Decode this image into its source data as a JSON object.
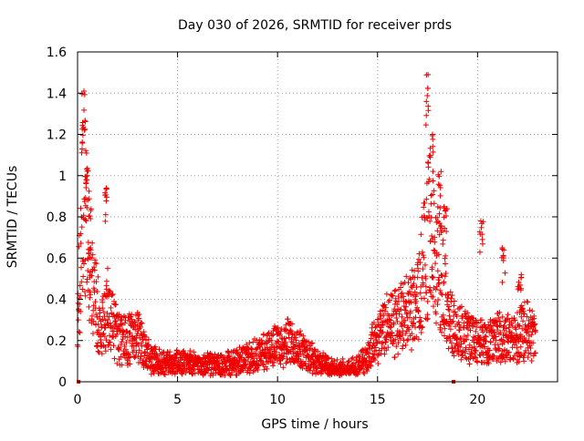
{
  "chart_data": {
    "type": "scatter",
    "title": "Day 030 of 2026, SRMTID for receiver prds",
    "xlabel": "GPS time / hours",
    "ylabel": "SRMTID / TECUs",
    "xlim": [
      0,
      24
    ],
    "ylim": [
      0,
      1.6
    ],
    "xticks": [
      0,
      5,
      10,
      15,
      20
    ],
    "xtick_labels": [
      "0",
      "5",
      "10",
      "15",
      "20"
    ],
    "yticks": [
      0,
      0.2,
      0.4,
      0.6,
      0.8,
      1.0,
      1.2,
      1.4,
      1.6
    ],
    "ytick_labels": [
      "0",
      "0.2",
      "0.4",
      "0.6",
      "0.8",
      "1",
      "1.2",
      "1.4",
      "1.6"
    ],
    "grid": true,
    "legend": "none",
    "series": [
      {
        "name": "SRMTID",
        "marker": "plus",
        "color": "#ee0000",
        "profile": [
          [
            0.0,
            0.33
          ],
          [
            0.15,
            0.55
          ],
          [
            0.25,
            1.0
          ],
          [
            0.4,
            0.8
          ],
          [
            0.6,
            0.6
          ],
          [
            0.9,
            0.38
          ],
          [
            1.2,
            0.25
          ],
          [
            1.5,
            0.35
          ],
          [
            2.0,
            0.22
          ],
          [
            2.5,
            0.2
          ],
          [
            3.0,
            0.22
          ],
          [
            3.5,
            0.13
          ],
          [
            4.0,
            0.1
          ],
          [
            5.0,
            0.09
          ],
          [
            6.0,
            0.09
          ],
          [
            7.0,
            0.08
          ],
          [
            8.0,
            0.1
          ],
          [
            9.0,
            0.13
          ],
          [
            9.5,
            0.16
          ],
          [
            10.0,
            0.18
          ],
          [
            10.5,
            0.2
          ],
          [
            11.0,
            0.16
          ],
          [
            12.0,
            0.1
          ],
          [
            13.0,
            0.06
          ],
          [
            14.0,
            0.07
          ],
          [
            14.5,
            0.13
          ],
          [
            15.0,
            0.22
          ],
          [
            15.5,
            0.27
          ],
          [
            16.0,
            0.3
          ],
          [
            16.5,
            0.33
          ],
          [
            17.0,
            0.4
          ],
          [
            17.4,
            0.6
          ],
          [
            17.6,
            0.75
          ],
          [
            17.8,
            0.65
          ],
          [
            18.1,
            0.55
          ],
          [
            18.5,
            0.35
          ],
          [
            18.8,
            0.25
          ],
          [
            19.5,
            0.22
          ],
          [
            20.0,
            0.2
          ],
          [
            20.5,
            0.18
          ],
          [
            21.0,
            0.22
          ],
          [
            21.5,
            0.2
          ],
          [
            22.0,
            0.22
          ],
          [
            22.5,
            0.26
          ],
          [
            22.8,
            0.2
          ]
        ],
        "peaks": [
          [
            0.3,
            1.41
          ],
          [
            0.4,
            1.0
          ],
          [
            0.6,
            0.65
          ],
          [
            1.45,
            0.94
          ],
          [
            17.5,
            1.49
          ],
          [
            17.7,
            1.2
          ],
          [
            18.1,
            1.02
          ],
          [
            18.4,
            0.85
          ],
          [
            20.2,
            0.78
          ],
          [
            21.3,
            0.65
          ],
          [
            22.1,
            0.52
          ]
        ],
        "x_range": [
          0.0,
          22.9
        ],
        "point_count": 2400
      }
    ],
    "zero_markers": [
      0.05,
      18.8
    ]
  }
}
